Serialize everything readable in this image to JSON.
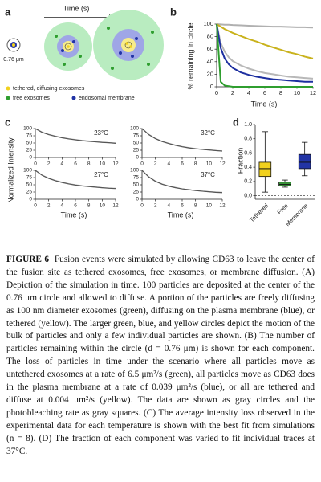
{
  "figure": {
    "a": {
      "label": "a",
      "time_label": "Time (s)",
      "scale_label": "0.76 μm",
      "legend": [
        "tethered, diffusing exosomes",
        "free exosomes",
        "endosomal membrane"
      ]
    },
    "b": {
      "label": "b",
      "type": "line",
      "ylabel": "% remaining in circle",
      "xlabel": "Time (s)",
      "x": [
        0,
        0.5,
        1,
        1.5,
        2,
        3,
        4,
        5,
        6,
        7,
        8,
        9,
        10,
        11,
        12
      ],
      "xlim": [
        0,
        12
      ],
      "xticks": [
        0,
        2,
        4,
        6,
        8,
        10,
        12
      ],
      "ylim": [
        0,
        100
      ],
      "yticks": [
        0,
        20,
        40,
        60,
        80,
        100
      ],
      "series": [
        {
          "color": "#b0b0b0",
          "values": [
            100,
            99.5,
            99,
            99,
            98.5,
            98,
            97.5,
            97,
            96.5,
            96,
            96,
            95.5,
            95,
            95,
            94.5
          ]
        },
        {
          "color": "#c9b21c",
          "values": [
            100,
            96,
            92,
            89,
            86,
            81,
            76,
            72,
            67,
            63,
            59,
            55,
            52,
            48,
            45
          ]
        },
        {
          "color": "#b8b8b8",
          "values": [
            100,
            70,
            56,
            47,
            41,
            34,
            29,
            25,
            22,
            20,
            18,
            16,
            15,
            14,
            13
          ]
        },
        {
          "color": "#1d2fa0",
          "values": [
            100,
            62,
            45,
            36,
            30,
            23,
            19,
            16,
            14,
            12,
            11,
            10,
            9,
            8,
            8
          ]
        },
        {
          "color": "#2f9e2f",
          "values": [
            100,
            8,
            2,
            1,
            0,
            0,
            0,
            0,
            0,
            0,
            0,
            0,
            0,
            0,
            0
          ]
        }
      ]
    },
    "c": {
      "label": "c",
      "type": "line",
      "ylabel": "Normalized Intensity",
      "xlabel": "Time (s)",
      "x": [
        0,
        1,
        2,
        3,
        4,
        5,
        6,
        7,
        8,
        9,
        10,
        11,
        12
      ],
      "xlim": [
        0,
        12
      ],
      "xticks": [
        0,
        2,
        4,
        6,
        8,
        10,
        12
      ],
      "ylim": [
        0,
        100
      ],
      "yticks": [
        0,
        25,
        50,
        75,
        100
      ],
      "panels": [
        {
          "title": "23°C",
          "series": [
            {
              "color": "#b5b5b5",
              "values": [
                100,
                88,
                80,
                74,
                69,
                65,
                62,
                59,
                57,
                55,
                53,
                51,
                50
              ]
            },
            {
              "color": "#555555",
              "values": [
                100,
                87,
                79,
                73,
                68,
                64,
                61,
                58,
                56,
                54,
                52,
                51,
                49
              ]
            }
          ]
        },
        {
          "title": "32°C",
          "series": [
            {
              "color": "#b5b5b5",
              "values": [
                100,
                80,
                66,
                56,
                49,
                43,
                38,
                34,
                31,
                28,
                26,
                24,
                23
              ]
            },
            {
              "color": "#555555",
              "values": [
                100,
                79,
                65,
                55,
                48,
                42,
                37,
                33,
                30,
                28,
                26,
                24,
                22
              ]
            }
          ]
        },
        {
          "title": "27°C",
          "series": [
            {
              "color": "#b5b5b5",
              "values": [
                100,
                84,
                73,
                65,
                59,
                54,
                50,
                47,
                44,
                42,
                40,
                39,
                38
              ]
            },
            {
              "color": "#555555",
              "values": [
                100,
                83,
                72,
                64,
                58,
                53,
                49,
                46,
                44,
                42,
                40,
                38,
                37
              ]
            }
          ]
        },
        {
          "title": "37°C",
          "series": [
            {
              "color": "#b5b5b5",
              "values": [
                100,
                78,
                63,
                53,
                46,
                41,
                36,
                33,
                30,
                28,
                26,
                25,
                24
              ]
            },
            {
              "color": "#555555",
              "values": [
                100,
                77,
                62,
                52,
                45,
                40,
                36,
                33,
                30,
                28,
                26,
                24,
                23
              ]
            }
          ]
        }
      ]
    },
    "d": {
      "label": "d",
      "type": "box",
      "ylabel": "Fraction",
      "categories": [
        "Tethered",
        "Free",
        "Membrane"
      ],
      "colors": [
        "#f1d11d",
        "#3ca23c",
        "#2234a5"
      ],
      "boxes": [
        {
          "min": 0.05,
          "q1": 0.27,
          "median": 0.38,
          "q3": 0.47,
          "max": 0.9
        },
        {
          "min": 0.12,
          "q1": 0.14,
          "median": 0.16,
          "q3": 0.19,
          "max": 0.22
        },
        {
          "min": 0.28,
          "q1": 0.38,
          "median": 0.47,
          "q3": 0.58,
          "max": 0.75
        }
      ],
      "ylim": [
        -0.05,
        1.0
      ],
      "yticks": [
        {
          "value": 0,
          "label": "0.0"
        },
        {
          "value": 0.2,
          "label": "0.2"
        },
        {
          "value": 0.4,
          "label": "0.4"
        },
        {
          "value": 0.6,
          "label": "0.6"
        },
        {
          "value": 0.8,
          "label": "0.8"
        },
        {
          "value": 1.0,
          "label": "1.0"
        }
      ]
    }
  },
  "caption": {
    "label": "FIGURE 6",
    "text": "Fusion events were simulated by allowing CD63 to leave the center of the fusion site as tethered exosomes, free exosomes, or membrane diffusion. (A) Depiction of the simulation in time. 100 particles are deposited at the center of the 0.76 μm circle and allowed to diffuse. A portion of the particles are freely diffusing as 100 nm diameter exosomes (green), diffusing on the plasma membrane (blue), or tethered (yellow). The larger green, blue, and yellow circles depict the motion of the bulk of particles and only a few individual particles are shown. (B) The number of particles remaining within the circle (d = 0.76 μm) is shown for each component. The loss of particles in time under the scenario where all particles move as untethered exosomes at a rate of 6.5 μm²/s (green), all particles move as CD63 does in the plasma membrane at a rate of 0.039 μm²/s (blue), or all are tethered and diffuse at 0.004 μm²/s (yellow). The data are shown as gray circles and the photobleaching rate as gray squares. (C) The average intensity loss observed in the experimental data for each temperature is shown with the best fit from simulations (n = 8). (D) The fraction of each component was varied to fit individual traces at 37°C."
  }
}
